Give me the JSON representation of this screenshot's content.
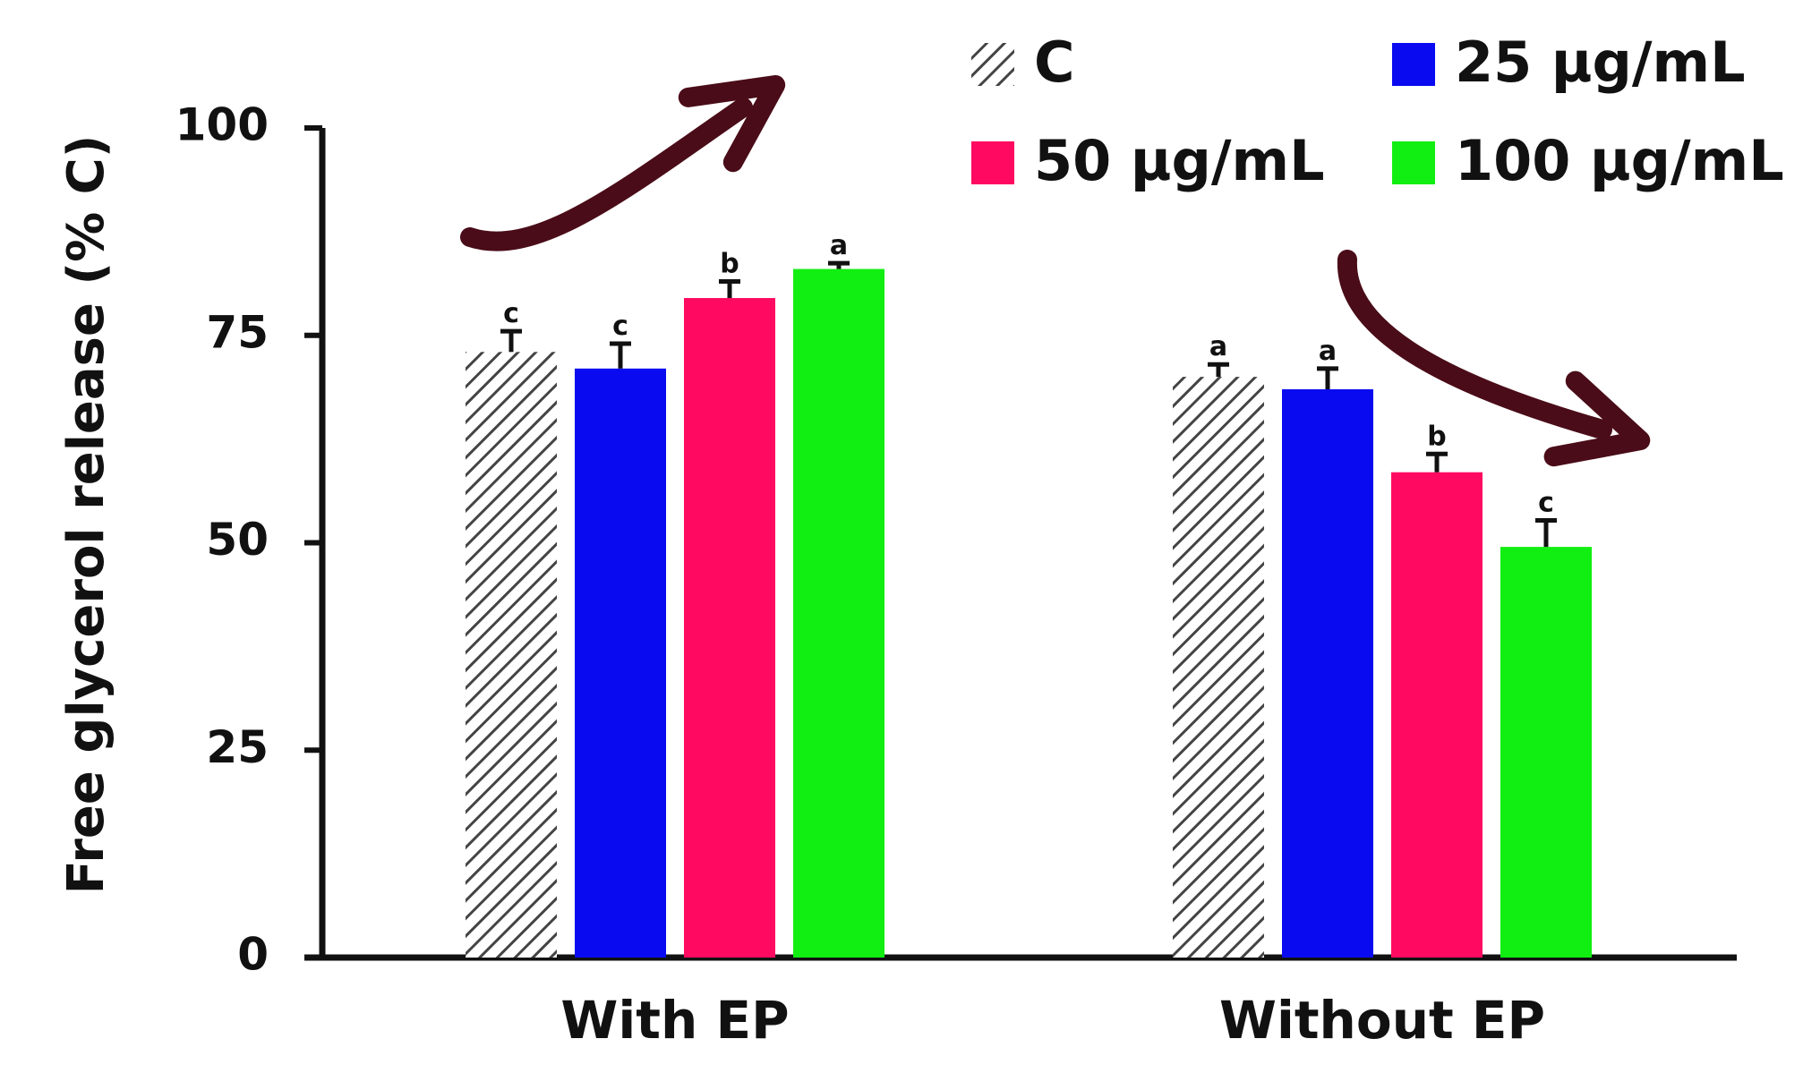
{
  "chart_data": {
    "type": "bar",
    "title": "",
    "xlabel": "",
    "ylabel": "Free glycerol release (% C)",
    "ylim": [
      0,
      100
    ],
    "yticks": [
      0,
      25,
      50,
      75,
      100
    ],
    "grid": false,
    "legend_position": "top-right",
    "categories": [
      "With EP",
      "Without EP"
    ],
    "series": [
      {
        "name": "C",
        "color": "#888888",
        "pattern": "hatch",
        "values": [
          73,
          70
        ],
        "errors": [
          2.5,
          1.5
        ],
        "sig": [
          "c",
          "a"
        ]
      },
      {
        "name": "25 µg/mL",
        "color": "#0a0af0",
        "pattern": "solid",
        "values": [
          71,
          68.5
        ],
        "errors": [
          3,
          2.5
        ],
        "sig": [
          "c",
          "a"
        ]
      },
      {
        "name": "50 µg/mL",
        "color": "#ff0a60",
        "pattern": "solid",
        "values": [
          79.5,
          58.5
        ],
        "errors": [
          2,
          2.2
        ],
        "sig": [
          "b",
          "b"
        ]
      },
      {
        "name": "100 µg/mL",
        "color": "#11ee11",
        "pattern": "solid",
        "values": [
          83,
          49.5
        ],
        "errors": [
          0.7,
          3.2
        ],
        "sig": [
          "a",
          "c"
        ]
      }
    ],
    "annotations": [
      {
        "type": "arrow",
        "direction": "up",
        "group": "With EP",
        "color": "#4a0c18"
      },
      {
        "type": "arrow",
        "direction": "down",
        "group": "Without EP",
        "color": "#4a0c18"
      }
    ]
  }
}
